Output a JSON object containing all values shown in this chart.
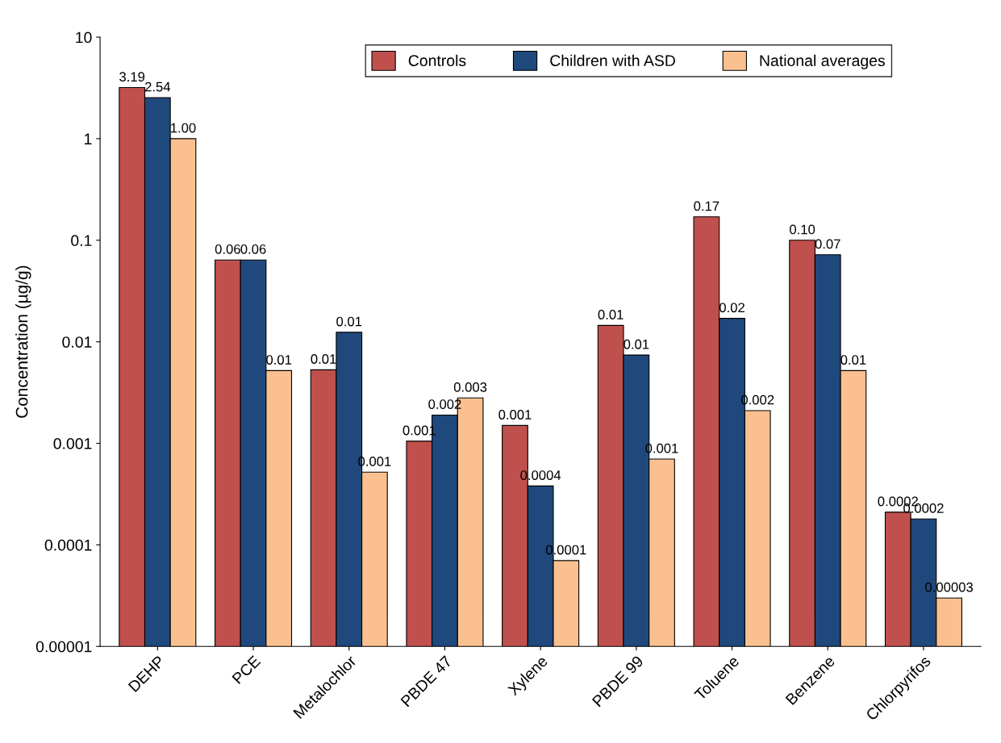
{
  "chart_data": {
    "type": "bar",
    "ylabel": "Concentration (µg/g)",
    "log": "y",
    "grid": false,
    "legend": "top",
    "data_labels": false,
    "categories": [
      "DEHP",
      "PCE",
      "Metalochlor",
      "PBDE 47",
      "Xylene",
      "PBDE 99",
      "Toluene",
      "Benzene",
      "Chlorpyrifos"
    ],
    "ylim": [
      1e-05,
      10
    ],
    "yticks": [
      {
        "value": 1e-05,
        "label": "0.00001"
      },
      {
        "value": 0.0001,
        "label": "0.0001"
      },
      {
        "value": 0.001,
        "label": "0.001"
      },
      {
        "value": 0.01,
        "label": "0.01"
      },
      {
        "value": 0.1,
        "label": "0.1"
      },
      {
        "value": 1,
        "label": "1"
      },
      {
        "value": 10,
        "label": "10"
      }
    ],
    "series": [
      {
        "name": "Controls",
        "color": "#c0504d",
        "values": [
          3.19,
          0.064,
          0.0053,
          0.00105,
          0.0015,
          0.0145,
          0.17,
          0.1,
          0.00021
        ],
        "value_labels": [
          "3.19",
          "0.06",
          "0.01",
          "0.001",
          "0.001",
          "0.01",
          "0.17",
          "0.10",
          "0.0002"
        ]
      },
      {
        "name": "Children with ASD",
        "color": "#1f497d",
        "values": [
          2.54,
          0.064,
          0.0124,
          0.0019,
          0.00038,
          0.0074,
          0.017,
          0.072,
          0.00018
        ],
        "value_labels": [
          "2.54",
          "0.06",
          "0.01",
          "0.002",
          "0.0004",
          "0.01",
          "0.02",
          "0.07",
          "0.0002"
        ]
      },
      {
        "name": "National averages",
        "color": "#fac090",
        "values": [
          1.0,
          0.0052,
          0.00052,
          0.0028,
          7e-05,
          0.0007,
          0.0021,
          0.0052,
          3e-05
        ],
        "value_labels": [
          "1.00",
          "0.01",
          "0.001",
          "0.003",
          "0.0001",
          "0.001",
          "0.002",
          "0.01",
          "0.00003"
        ]
      }
    ]
  }
}
